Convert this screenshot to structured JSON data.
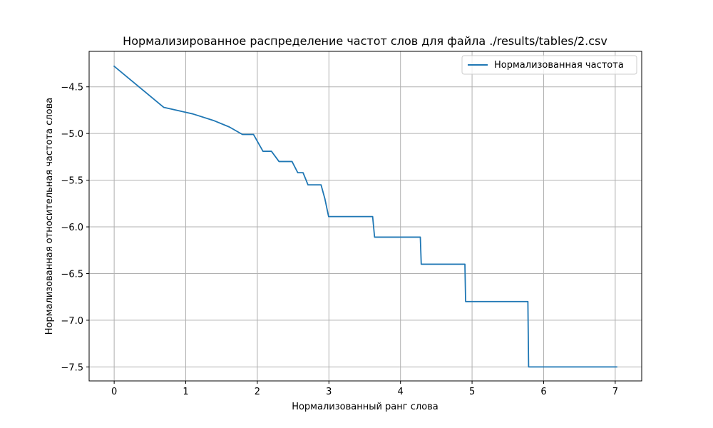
{
  "chart_data": {
    "type": "line",
    "title": "Нормализированное распределение частот слов для файла ./results/tables/2.csv",
    "xlabel": "Нормализованный ранг слова",
    "ylabel": "Нормализованная относительная частота слова",
    "xlim": [
      -0.35,
      7.37
    ],
    "ylim": [
      -7.65,
      -4.12
    ],
    "xticks": [
      0,
      1,
      2,
      3,
      4,
      5,
      6,
      7
    ],
    "xtick_labels": [
      "0",
      "1",
      "2",
      "3",
      "4",
      "5",
      "6",
      "7"
    ],
    "yticks": [
      -4.5,
      -5.0,
      -5.5,
      -6.0,
      -6.5,
      -7.0,
      -7.5
    ],
    "ytick_labels": [
      "−4.5",
      "−5.0",
      "−5.5",
      "−6.0",
      "−6.5",
      "−7.0",
      "−7.5"
    ],
    "grid": true,
    "legend_position": "top-right",
    "colors": {
      "series": "#1f77b4",
      "grid": "#b0b0b0",
      "axes": "#000000",
      "legend_border": "#cccccc"
    },
    "series": [
      {
        "name": "Нормализованная частота",
        "x": [
          0,
          0.693,
          1.099,
          1.386,
          1.609,
          1.792,
          1.946,
          2.079,
          2.197,
          2.303,
          2.398,
          2.485,
          2.565,
          2.639,
          2.708,
          2.773,
          2.833,
          2.89,
          2.944,
          2.996,
          3.045,
          3.091,
          3.135,
          3.178,
          3.219,
          3.258,
          3.296,
          3.332,
          3.367,
          3.401,
          3.434,
          3.466,
          3.497,
          3.526,
          3.555,
          3.584,
          3.611,
          3.638,
          3.664,
          3.689,
          3.714,
          3.738,
          3.761,
          3.784,
          3.807,
          3.829,
          3.85,
          3.871,
          3.892,
          3.912,
          3.932,
          3.951,
          3.97,
          3.989,
          4.007,
          4.025,
          4.043,
          4.06,
          4.078,
          4.094,
          4.111,
          4.127,
          4.143,
          4.159,
          4.174,
          4.19,
          4.205,
          4.22,
          4.234,
          4.248,
          4.263,
          4.277,
          4.29,
          4.304,
          4.9,
          4.91,
          4.92,
          4.93,
          5.78,
          5.79,
          5.8,
          5.81,
          7.02
        ],
        "y": [
          -4.28,
          -4.72,
          -4.79,
          -4.86,
          -4.93,
          -5.01,
          -5.01,
          -5.19,
          -5.19,
          -5.3,
          -5.3,
          -5.3,
          -5.42,
          -5.42,
          -5.55,
          -5.55,
          -5.55,
          -5.55,
          -5.7,
          -5.89,
          -5.89,
          -5.89,
          -5.89,
          -5.89,
          -5.89,
          -5.89,
          -5.89,
          -5.89,
          -5.89,
          -5.89,
          -5.89,
          -5.89,
          -5.89,
          -5.89,
          -5.89,
          -5.89,
          -5.89,
          -6.11,
          -6.11,
          -6.11,
          -6.11,
          -6.11,
          -6.11,
          -6.11,
          -6.11,
          -6.11,
          -6.11,
          -6.11,
          -6.11,
          -6.11,
          -6.11,
          -6.11,
          -6.11,
          -6.11,
          -6.11,
          -6.11,
          -6.11,
          -6.11,
          -6.11,
          -6.11,
          -6.11,
          -6.11,
          -6.11,
          -6.11,
          -6.11,
          -6.11,
          -6.11,
          -6.11,
          -6.11,
          -6.11,
          -6.11,
          -6.11,
          -6.4,
          -6.4,
          -6.4,
          -6.8,
          -6.8,
          -6.8,
          -6.8,
          -7.5,
          -7.5,
          -7.5,
          -7.5
        ]
      }
    ]
  }
}
